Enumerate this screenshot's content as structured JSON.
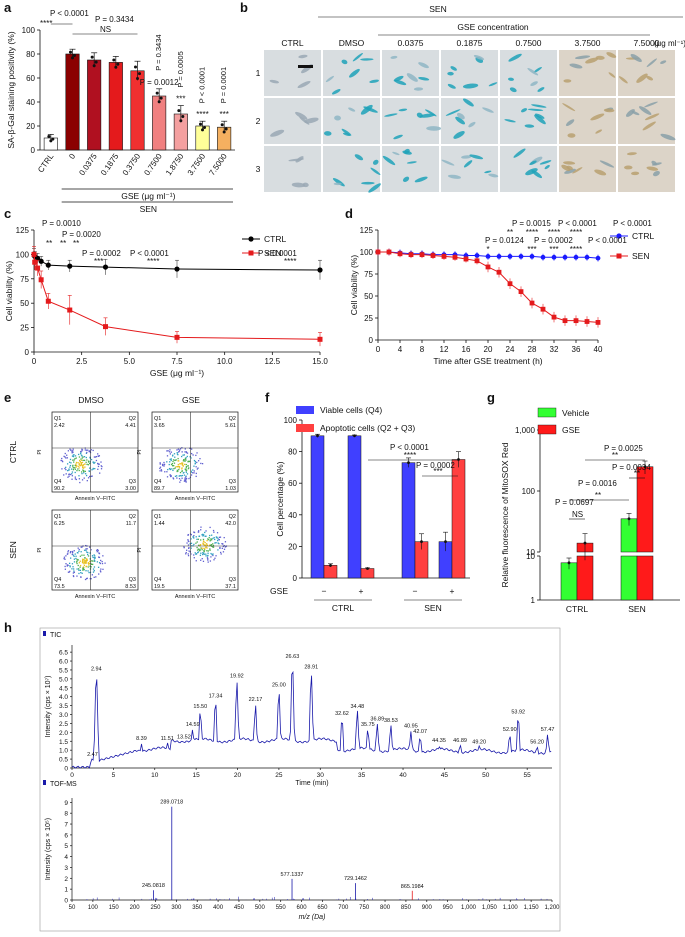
{
  "panels": {
    "a": "a",
    "b": "b",
    "c": "c",
    "d": "d",
    "e": "e",
    "f": "f",
    "g": "g",
    "h": "h"
  },
  "chart_data": [
    {
      "panel": "a",
      "type": "bar",
      "ylabel": "SA-β-Gal staining positivity (%)",
      "xlabel": "GSE (μg ml⁻¹)",
      "group_label": "SEN",
      "categories": [
        "CTRL",
        "0",
        "0.0375",
        "0.1875",
        "0.3750",
        "0.7500",
        "1.8750",
        "3.7500",
        "7.5000"
      ],
      "values": [
        10,
        80,
        75,
        73,
        66,
        45,
        30,
        20,
        19
      ],
      "errors": [
        3,
        4,
        6,
        5,
        8,
        6,
        7,
        4,
        5
      ],
      "colors": [
        "#ffffff",
        "#8b0000",
        "#b01020",
        "#e41a1c",
        "#f03030",
        "#f08080",
        "#f4a0a0",
        "#ffff99",
        "#f5b060"
      ],
      "ylim": [
        0,
        100
      ],
      "yticks": [
        0,
        20,
        40,
        60,
        80,
        100
      ],
      "annotations": [
        "P < 0.0001",
        "****",
        "P = 0.3434",
        "NS",
        "P = 0.0012",
        "**",
        "P = 0.0005",
        "***",
        "P < 0.0001",
        "****",
        "P = 0.0001",
        "***"
      ]
    },
    {
      "panel": "c",
      "type": "line",
      "xlabel": "GSE (μg ml⁻¹)",
      "ylabel": "Cell viability (%)",
      "xlim": [
        0,
        15
      ],
      "ylim": [
        0,
        125
      ],
      "xticks": [
        0,
        2.5,
        5.0,
        7.5,
        10.0,
        12.5,
        15.0
      ],
      "xtick_labels": [
        "0",
        "2.5",
        "5.0",
        "7.5",
        "10.0",
        "12.5",
        "15.0"
      ],
      "yticks": [
        0,
        25,
        50,
        75,
        100,
        125
      ],
      "x": [
        0,
        0.0375,
        0.1875,
        0.375,
        0.75,
        1.875,
        3.75,
        7.5,
        15
      ],
      "series": [
        {
          "name": "CTRL",
          "color": "#000000",
          "values": [
            100,
            98,
            96,
            93,
            89,
            88,
            87,
            85,
            84
          ],
          "errors": [
            6,
            5,
            5,
            5,
            5,
            6,
            8,
            9,
            10
          ]
        },
        {
          "name": "SEN",
          "color": "#e41a1c",
          "values": [
            100,
            92,
            86,
            74,
            52,
            43,
            26,
            15,
            13
          ],
          "errors": [
            8,
            8,
            8,
            9,
            8,
            15,
            9,
            6,
            7
          ]
        }
      ],
      "annotations": [
        "P = 0.0010",
        "**",
        "P = 0.0020",
        "**",
        "P = 0.0002",
        "***",
        "P < 0.0001",
        "****",
        "P < 0.0001",
        "****"
      ]
    },
    {
      "panel": "d",
      "type": "line",
      "xlabel": "Time after GSE treatment (h)",
      "ylabel": "Cell viability (%)",
      "xlim": [
        0,
        40
      ],
      "ylim": [
        0,
        125
      ],
      "xticks": [
        0,
        4,
        8,
        12,
        16,
        20,
        24,
        28,
        32,
        36,
        40
      ],
      "yticks": [
        0,
        25,
        50,
        75,
        100,
        125
      ],
      "x": [
        0,
        2,
        4,
        6,
        8,
        10,
        12,
        14,
        16,
        18,
        20,
        22,
        24,
        26,
        28,
        30,
        32,
        34,
        36,
        38,
        40
      ],
      "series": [
        {
          "name": "CTRL",
          "color": "#1a1aff",
          "values": [
            100,
            100,
            99,
            98,
            98,
            97,
            97,
            97,
            96,
            96,
            95,
            95,
            95,
            95,
            95,
            94,
            94,
            94,
            94,
            94,
            93
          ]
        },
        {
          "name": "SEN",
          "color": "#e41a1c",
          "values": [
            100,
            100,
            98,
            97,
            97,
            96,
            95,
            94,
            92,
            90,
            83,
            77,
            64,
            55,
            42,
            35,
            26,
            22,
            22,
            21,
            20
          ]
        }
      ],
      "annotations": [
        "P = 0.0015",
        "P < 0.0001",
        "P < 0.0001",
        "P = 0.0124",
        "P = 0.0002",
        "P < 0.0001",
        "*",
        "**",
        "****",
        "****",
        "***",
        "****",
        "***",
        "****"
      ]
    },
    {
      "panel": "f",
      "type": "bar",
      "ylabel": "Cell percentage (%)",
      "ylim": [
        0,
        100
      ],
      "yticks": [
        0,
        20,
        40,
        60,
        80,
        100
      ],
      "groups": [
        "CTRL",
        "SEN"
      ],
      "gse_row_label": "GSE",
      "gse_states": [
        "−",
        "+",
        "−",
        "+"
      ],
      "series": [
        {
          "name": "Viable cells (Q4)",
          "color": "#4040ff",
          "values": [
            90,
            90,
            73,
            23
          ]
        },
        {
          "name": "Apoptotic cells (Q2 + Q3)",
          "color": "#ff4040",
          "values": [
            8,
            6,
            23,
            75
          ]
        }
      ],
      "annotations": [
        "P < 0.0001",
        "****",
        "P = 0.0002",
        "***"
      ]
    },
    {
      "panel": "g",
      "type": "bar",
      "ylabel": "Relative fluorescence of MitoSOX Red",
      "yscale": "log-broken",
      "ytick_labels": [
        "1",
        "10",
        "10",
        "100",
        "1,000"
      ],
      "groups": [
        "CTRL",
        "SEN"
      ],
      "series": [
        {
          "name": "Vehicle",
          "color": "#33ff33",
          "values": [
            7,
            35
          ]
        },
        {
          "name": "GSE",
          "color": "#ff1a1a",
          "values": [
            14,
            250
          ]
        }
      ],
      "annotations": [
        "P = 0.0697",
        "NS",
        "P = 0.0016",
        "**",
        "P = 0.0025",
        "**",
        "P = 0.0034",
        "**"
      ]
    },
    {
      "panel": "h-top",
      "type": "line",
      "title": "TIC",
      "xlabel": "Time (min)",
      "ylabel": "Intensity (cps × 10⁷)",
      "xlim": [
        0,
        58
      ],
      "ylim": [
        0,
        6.9
      ],
      "xticks": [
        0,
        5,
        10,
        15,
        20,
        25,
        30,
        35,
        40,
        45,
        50,
        55
      ],
      "yticks": [
        0,
        0.5,
        1.0,
        1.5,
        2.0,
        2.5,
        3.0,
        3.5,
        4.0,
        4.5,
        5.0,
        5.5,
        6.0,
        6.5
      ],
      "ytick_labels": [
        "0",
        "0.5",
        "1.0",
        "1.5",
        "2.0",
        "2.5",
        "3.0",
        "3.5",
        "4.0",
        "4.5",
        "5.0",
        "5.5",
        "6.0",
        "6.5"
      ],
      "peaks": [
        {
          "t": 2.47,
          "v": 0.5
        },
        {
          "t": 2.94,
          "v": 5.3
        },
        {
          "t": 8.39,
          "v": 1.4
        },
        {
          "t": 11.51,
          "v": 1.4
        },
        {
          "t": 13.52,
          "v": 1.5
        },
        {
          "t": 14.59,
          "v": 2.2
        },
        {
          "t": 15.5,
          "v": 3.2
        },
        {
          "t": 17.34,
          "v": 3.8
        },
        {
          "t": 19.92,
          "v": 4.9
        },
        {
          "t": 22.17,
          "v": 3.6
        },
        {
          "t": 25.0,
          "v": 4.4
        },
        {
          "t": 26.63,
          "v": 6.0
        },
        {
          "t": 28.91,
          "v": 5.4
        },
        {
          "t": 32.62,
          "v": 2.8
        },
        {
          "t": 34.48,
          "v": 3.2
        },
        {
          "t": 35.75,
          "v": 2.2
        },
        {
          "t": 36.89,
          "v": 2.5
        },
        {
          "t": 38.53,
          "v": 2.4
        },
        {
          "t": 40.95,
          "v": 2.1
        },
        {
          "t": 42.07,
          "v": 1.8
        },
        {
          "t": 44.35,
          "v": 1.3
        },
        {
          "t": 46.89,
          "v": 1.3
        },
        {
          "t": 49.2,
          "v": 1.2
        },
        {
          "t": 52.9,
          "v": 1.9
        },
        {
          "t": 53.92,
          "v": 2.9
        },
        {
          "t": 56.2,
          "v": 1.2
        },
        {
          "t": 57.47,
          "v": 1.9
        }
      ]
    },
    {
      "panel": "h-bottom",
      "type": "bar",
      "title": "TOF-MS",
      "xlabel": "m/z (Da)",
      "ylabel": "Intensity (cps × 10⁵)",
      "xlim": [
        50,
        1200
      ],
      "ylim": [
        0,
        9.4
      ],
      "xticks": [
        50,
        100,
        150,
        200,
        250,
        300,
        350,
        400,
        450,
        500,
        550,
        600,
        650,
        700,
        750,
        800,
        850,
        900,
        950,
        1000,
        1050,
        1100,
        1150,
        1200
      ],
      "xtick_labels": [
        "50",
        "100",
        "150",
        "200",
        "250",
        "300",
        "350",
        "400",
        "450",
        "500",
        "550",
        "600",
        "650",
        "700",
        "750",
        "800",
        "850",
        "900",
        "950",
        "1,000",
        "1,050",
        "1,100",
        "1,150",
        "1,200"
      ],
      "yticks": [
        0,
        1,
        2,
        3,
        4,
        5,
        6,
        7,
        8,
        9
      ],
      "peaks": [
        {
          "mz": 289.0718,
          "v": 8.6,
          "label": "289.0718",
          "color": "#1a1aaa"
        },
        {
          "mz": 245.0818,
          "v": 0.9,
          "label": "245.0818",
          "color": "#1a1aaa"
        },
        {
          "mz": 577.1337,
          "v": 1.95,
          "label": "577.1337",
          "color": "#1a1aaa"
        },
        {
          "mz": 729.1462,
          "v": 1.55,
          "label": "729.1462",
          "color": "#1a1aaa"
        },
        {
          "mz": 865.1984,
          "v": 0.85,
          "label": "865.1984",
          "color": "#e41a1c"
        }
      ]
    }
  ],
  "panel_b": {
    "title": "SEN",
    "subtitle": "GSE concentration",
    "unit": "(μg ml⁻¹)",
    "columns": [
      "CTRL",
      "DMSO",
      "0.0375",
      "0.1875",
      "0.7500",
      "3.7500",
      "7.5000"
    ],
    "rows": [
      "1",
      "2",
      "3"
    ]
  },
  "panel_e": {
    "columns": [
      "DMSO",
      "GSE"
    ],
    "rows": [
      "CTRL",
      "SEN"
    ],
    "xaxis": "Annexin V–FITC",
    "yaxis": "PI",
    "quadrants": [
      {
        "q1": "2.42",
        "q2": "4.41",
        "q3": "3.00",
        "q4": "90.2"
      },
      {
        "q1": "3.65",
        "q2": "5.61",
        "q3": "1.03",
        "q4": "89.7"
      },
      {
        "q1": "6.25",
        "q2": "11.7",
        "q3": "8.53",
        "q4": "73.5"
      },
      {
        "q1": "1.44",
        "q2": "42.0",
        "q3": "37.1",
        "q4": "19.5"
      }
    ],
    "q_names": [
      "Q1",
      "Q2",
      "Q3",
      "Q4"
    ]
  }
}
